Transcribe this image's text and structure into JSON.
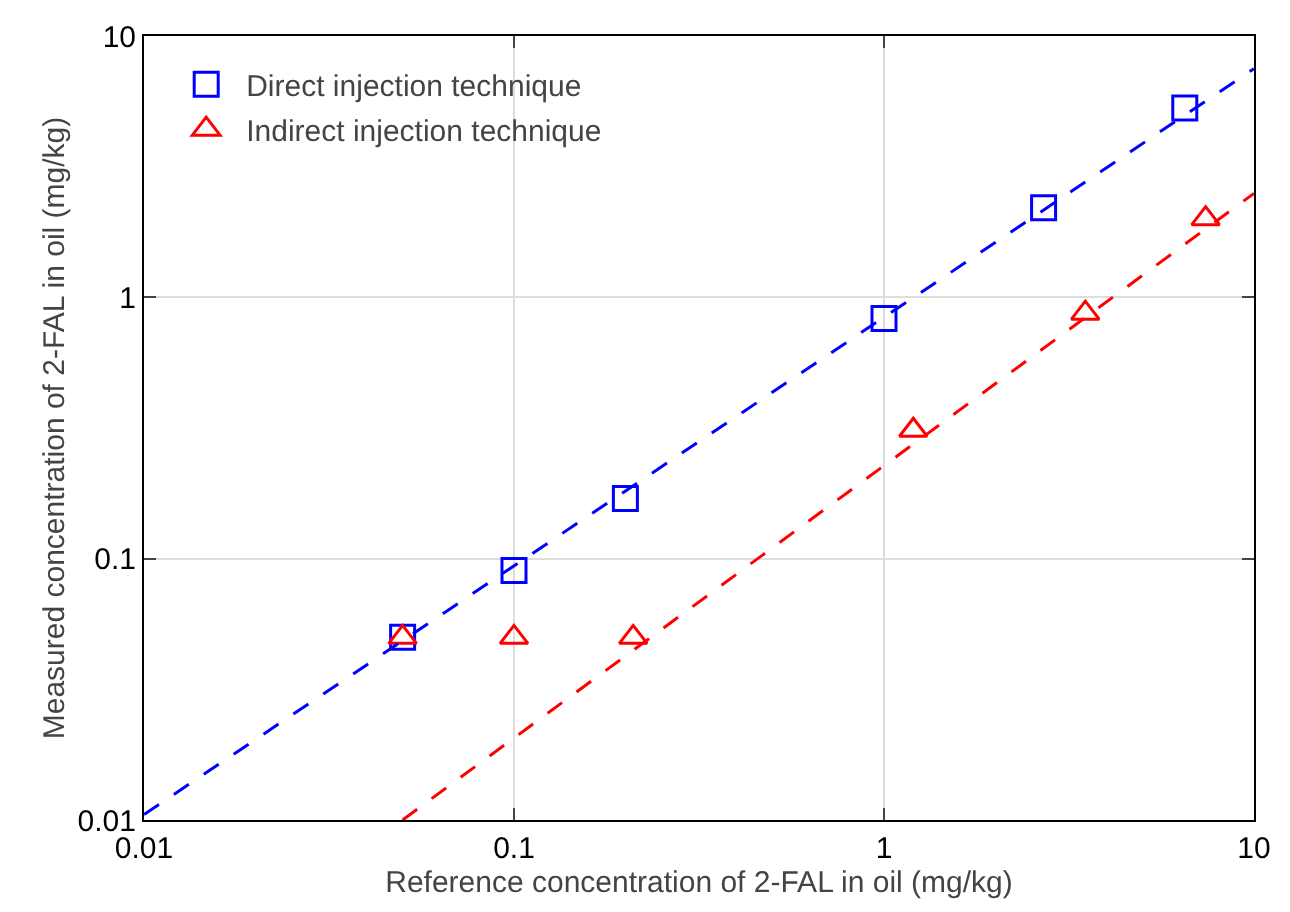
{
  "chart_data": {
    "type": "scatter",
    "xlabel": "Reference concentration of 2-FAL in oil (mg/kg)",
    "ylabel": "Measured concentration of 2-FAL in oil (mg/kg)",
    "log": "xy",
    "xlim": [
      0.01,
      10
    ],
    "ylim": [
      0.01,
      10
    ],
    "xticks": [
      0.01,
      0.1,
      1,
      10
    ],
    "yticks": [
      0.01,
      0.1,
      1,
      10
    ],
    "grid": true,
    "legend": "top left",
    "series": [
      {
        "name": "Direct injection technique",
        "color": "#0000ff",
        "marker": "square",
        "x": [
          0.05,
          0.1,
          0.2,
          1,
          2.7,
          6.5
        ],
        "values": [
          0.05,
          0.09,
          0.17,
          0.83,
          2.2,
          5.3
        ]
      },
      {
        "name": "Indirect injection technique",
        "color": "#ff0000",
        "marker": "triangle",
        "x": [
          0.05,
          0.1,
          0.21,
          1.2,
          3.5,
          7.4
        ],
        "values": [
          0.05,
          0.05,
          0.05,
          0.31,
          0.87,
          2.0
        ]
      },
      {
        "type": "line",
        "color": "#0000ff",
        "line_style": "dashed",
        "marker": "none",
        "x": [
          0.01,
          10
        ],
        "values": [
          0.0105,
          7.5
        ]
      },
      {
        "type": "line",
        "color": "#ff0000",
        "line_style": "dashed",
        "marker": "none",
        "x": [
          0.05,
          10
        ],
        "values": [
          0.01,
          2.5
        ]
      }
    ]
  }
}
